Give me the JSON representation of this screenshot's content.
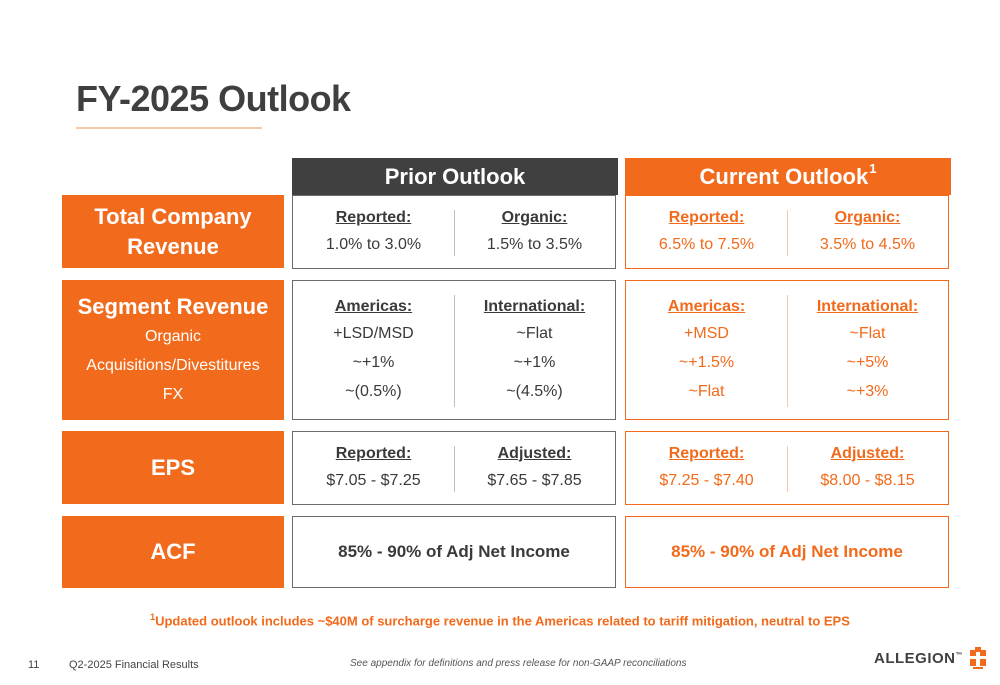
{
  "slide": {
    "title": "FY-2025 Outlook",
    "prior_header": "Prior Outlook",
    "current_header": "Current Outlook",
    "current_header_sup": "1"
  },
  "rows": {
    "revenue": {
      "label": "Total Company Revenue",
      "prior": {
        "left_hd": "Reported:",
        "left_val": "1.0% to 3.0%",
        "right_hd": "Organic:",
        "right_val": "1.5% to 3.5%"
      },
      "current": {
        "left_hd": "Reported:",
        "left_val": "6.5% to 7.5%",
        "right_hd": "Organic:",
        "right_val": "3.5% to 4.5%"
      }
    },
    "segment": {
      "label": "Segment Revenue",
      "sub": [
        "Organic",
        "Acquisitions/Divestitures",
        "FX"
      ],
      "prior": {
        "left_hd": "Americas:",
        "left_vals": [
          "+LSD/MSD",
          "~+1%",
          "~(0.5%)"
        ],
        "right_hd": "International:",
        "right_vals": [
          "~Flat",
          "~+1%",
          "~(4.5%)"
        ]
      },
      "current": {
        "left_hd": "Americas:",
        "left_vals": [
          "+MSD",
          "~+1.5%",
          "~Flat"
        ],
        "right_hd": "International:",
        "right_vals": [
          "~Flat",
          "~+5%",
          "~+3%"
        ]
      }
    },
    "eps": {
      "label": "EPS",
      "prior": {
        "left_hd": "Reported:",
        "left_val": "$7.05 - $7.25",
        "right_hd": "Adjusted:",
        "right_val": "$7.65 - $7.85"
      },
      "current": {
        "left_hd": "Reported:",
        "left_val": "$7.25 - $7.40",
        "right_hd": "Adjusted:",
        "right_val": "$8.00 - $8.15"
      }
    },
    "acf": {
      "label": "ACF",
      "prior": "85% - 90% of Adj Net Income",
      "current": "85% - 90% of Adj Net Income"
    }
  },
  "footnote": {
    "sup": "1",
    "text": "Updated outlook includes ~$40M of surcharge revenue in the Americas related to tariff mitigation, neutral to EPS"
  },
  "footer": {
    "page_number": "11",
    "doc_title": "Q2-2025 Financial Results",
    "appendix_note": "See appendix for definitions and press release for non-GAAP reconciliations",
    "logo_text": "ALLEGION",
    "logo_tm": "™"
  },
  "colors": {
    "brand_orange": "#f26a1b",
    "dark_gray": "#404040"
  }
}
